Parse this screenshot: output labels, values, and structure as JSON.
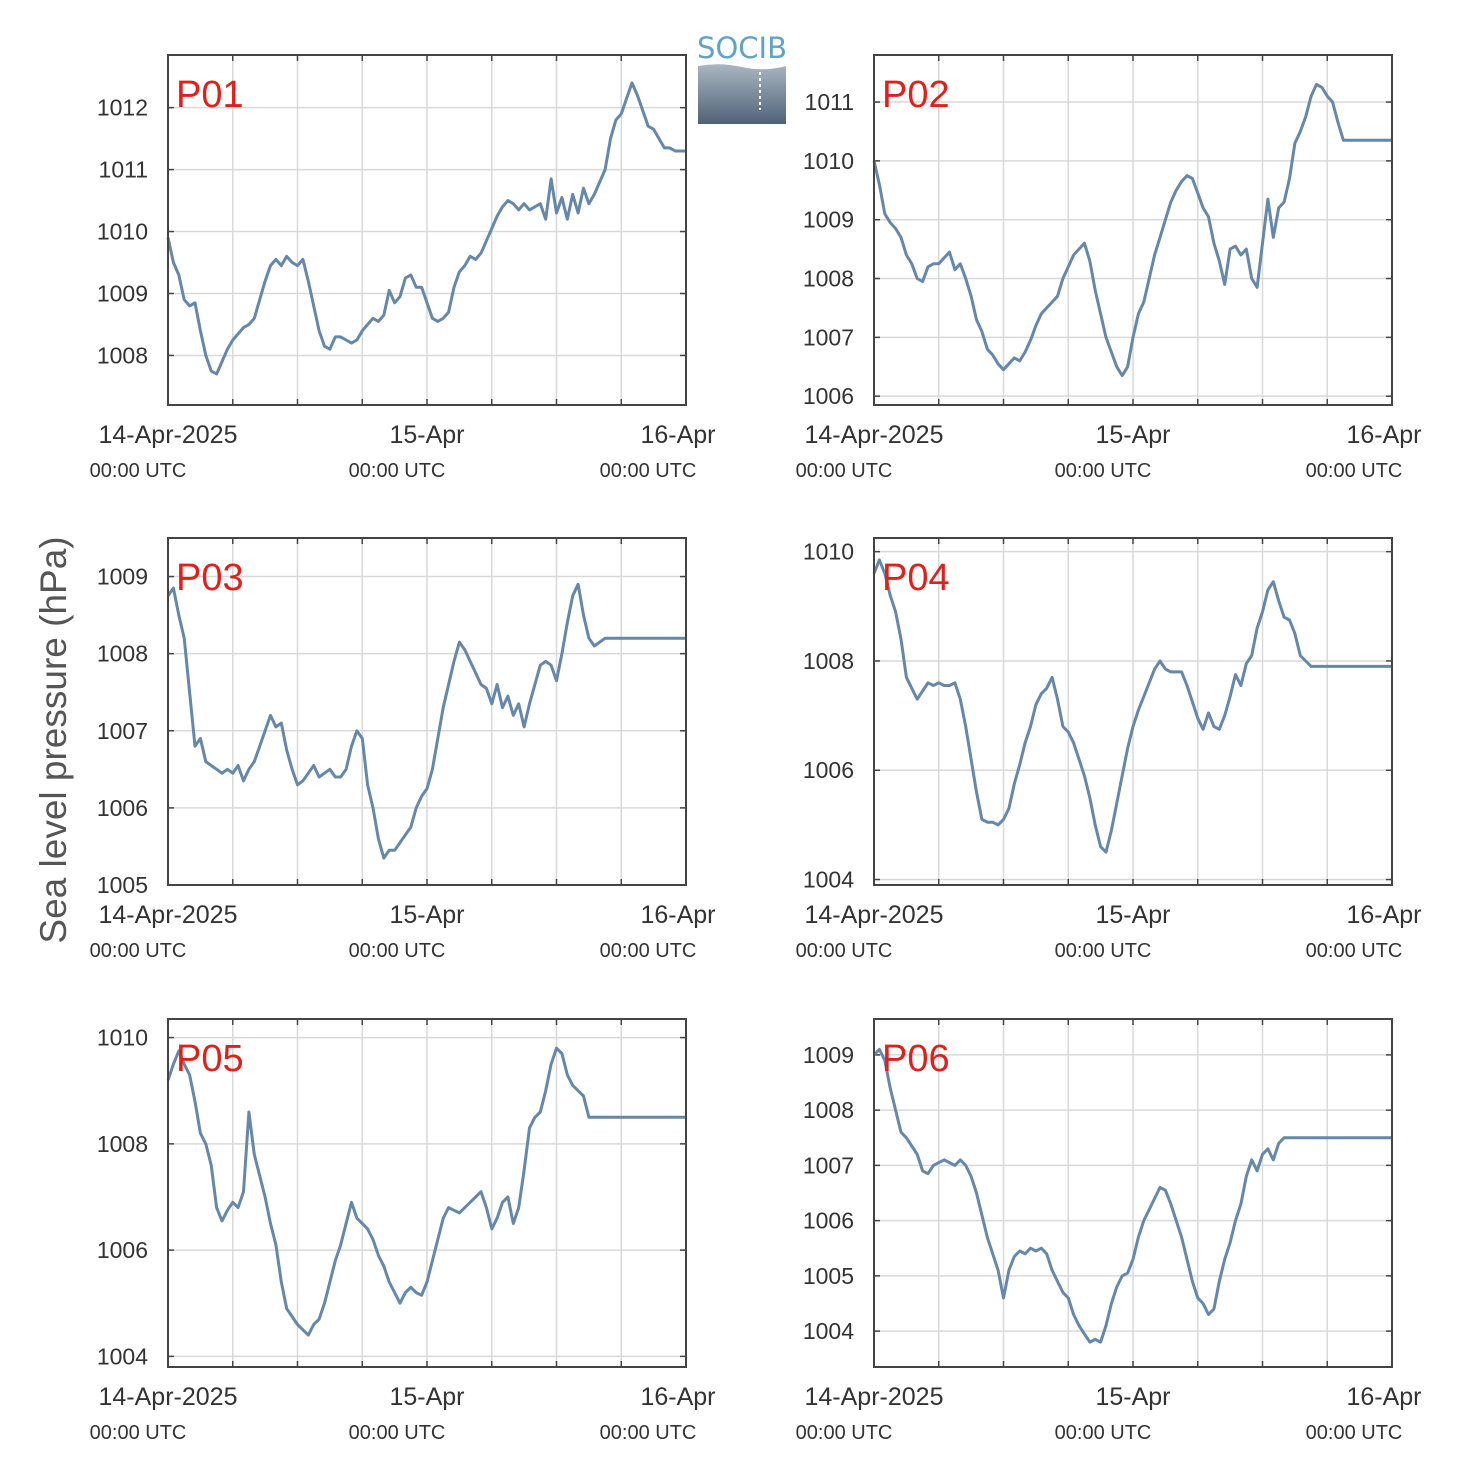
{
  "figure": {
    "ylabel": "Sea level pressure (hPa)",
    "logo_text": "SOCIB",
    "line_color": "#6588aa",
    "label_color": "#e0201b",
    "grid_color": "#d9d9d9",
    "axis_color": "#444444"
  },
  "x_ticks": [
    {
      "day": "14-Apr-2025",
      "time": "00:00 UTC",
      "hour": 0
    },
    {
      "day": "15-Apr",
      "time": "00:00 UTC",
      "hour": 24
    },
    {
      "day": "16-Apr",
      "time": "00:00 UTC",
      "hour": 48
    }
  ],
  "chart_data": [
    {
      "type": "line",
      "name": "P01",
      "xlim": [
        0,
        48
      ],
      "ylim": [
        1007.2,
        1012.85
      ],
      "yticks": [
        1008,
        1009,
        1010,
        1011,
        1012
      ],
      "xgrid_hours": [
        6,
        12,
        18,
        24,
        30,
        36,
        42
      ],
      "x": [
        0,
        0.5,
        1,
        1.5,
        2,
        2.5,
        3,
        3.5,
        4,
        4.5,
        5,
        5.5,
        6,
        6.5,
        7,
        7.5,
        8,
        8.5,
        9,
        9.5,
        10,
        10.5,
        11,
        11.5,
        12,
        12.5,
        13,
        13.5,
        14,
        14.5,
        15,
        15.5,
        16,
        16.5,
        17,
        17.5,
        18,
        18.5,
        19,
        19.5,
        20,
        20.5,
        21,
        21.5,
        22,
        22.5,
        23,
        23.5,
        24,
        24.5,
        25,
        25.5,
        26,
        26.5,
        27,
        27.5,
        28,
        28.5,
        29,
        29.5,
        30,
        30.5,
        31,
        31.5,
        32,
        32.5,
        33,
        33.5,
        34,
        34.5,
        35,
        35.5,
        36,
        36.5,
        37,
        37.5,
        38,
        38.5,
        39,
        39.5,
        40,
        40.5,
        41,
        41.5,
        42,
        42.5,
        43,
        43.5,
        44,
        44.5,
        45,
        45.5,
        46,
        46.5,
        47,
        47.5,
        48
      ],
      "y": [
        1009.9,
        1009.5,
        1009.3,
        1008.9,
        1008.8,
        1008.85,
        1008.4,
        1008.0,
        1007.75,
        1007.7,
        1007.9,
        1008.1,
        1008.25,
        1008.35,
        1008.45,
        1008.5,
        1008.6,
        1008.9,
        1009.2,
        1009.45,
        1009.55,
        1009.45,
        1009.6,
        1009.5,
        1009.45,
        1009.55,
        1009.2,
        1008.8,
        1008.4,
        1008.15,
        1008.1,
        1008.3,
        1008.3,
        1008.25,
        1008.2,
        1008.25,
        1008.4,
        1008.5,
        1008.6,
        1008.55,
        1008.65,
        1009.05,
        1008.85,
        1008.95,
        1009.25,
        1009.3,
        1009.1,
        1009.1,
        1008.85,
        1008.6,
        1008.55,
        1008.6,
        1008.7,
        1009.1,
        1009.35,
        1009.45,
        1009.6,
        1009.55,
        1009.65,
        1009.85,
        1010.05,
        1010.25,
        1010.4,
        1010.5,
        1010.45,
        1010.35,
        1010.45,
        1010.35,
        1010.4,
        1010.45,
        1010.2,
        1010.85,
        1010.3,
        1010.55,
        1010.2,
        1010.6,
        1010.3,
        1010.7,
        1010.45,
        1010.6,
        1010.8,
        1011.0,
        1011.5,
        1011.8,
        1011.9,
        1012.15,
        1012.4,
        1012.2,
        1011.95,
        1011.7,
        1011.65,
        1011.5,
        1011.35,
        1011.35,
        1011.3,
        1011.3,
        1011.3
      ]
    },
    {
      "type": "line",
      "name": "P02",
      "xlim": [
        0,
        48
      ],
      "ylim": [
        1005.85,
        1011.8
      ],
      "yticks": [
        1006,
        1007,
        1008,
        1009,
        1010,
        1011
      ],
      "xgrid_hours": [
        6,
        12,
        18,
        24,
        30,
        36,
        42
      ],
      "x": [
        0,
        0.5,
        1,
        1.5,
        2,
        2.5,
        3,
        3.5,
        4,
        4.5,
        5,
        5.5,
        6,
        6.5,
        7,
        7.5,
        8,
        8.5,
        9,
        9.5,
        10,
        10.5,
        11,
        11.5,
        12,
        12.5,
        13,
        13.5,
        14,
        14.5,
        15,
        15.5,
        16,
        16.5,
        17,
        17.5,
        18,
        18.5,
        19,
        19.5,
        20,
        20.5,
        21,
        21.5,
        22,
        22.5,
        23,
        23.5,
        24,
        24.5,
        25,
        25.5,
        26,
        26.5,
        27,
        27.5,
        28,
        28.5,
        29,
        29.5,
        30,
        30.5,
        31,
        31.5,
        32,
        32.5,
        33,
        33.5,
        34,
        34.5,
        35,
        35.5,
        36,
        36.5,
        37,
        37.5,
        38,
        38.5,
        39,
        39.5,
        40,
        40.5,
        41,
        41.5,
        42,
        42.5,
        43,
        43.5,
        44,
        44.5,
        45,
        45.5,
        46,
        46.5,
        47,
        47.5,
        48
      ],
      "y": [
        1010.0,
        1009.6,
        1009.1,
        1008.95,
        1008.85,
        1008.7,
        1008.4,
        1008.25,
        1008.0,
        1007.95,
        1008.2,
        1008.25,
        1008.25,
        1008.35,
        1008.45,
        1008.15,
        1008.25,
        1008.0,
        1007.7,
        1007.3,
        1007.1,
        1006.8,
        1006.7,
        1006.55,
        1006.45,
        1006.55,
        1006.65,
        1006.6,
        1006.75,
        1006.95,
        1007.2,
        1007.4,
        1007.5,
        1007.6,
        1007.7,
        1008.0,
        1008.2,
        1008.4,
        1008.5,
        1008.6,
        1008.3,
        1007.8,
        1007.4,
        1007.0,
        1006.75,
        1006.5,
        1006.35,
        1006.5,
        1007.0,
        1007.4,
        1007.6,
        1008.0,
        1008.4,
        1008.7,
        1009.0,
        1009.3,
        1009.5,
        1009.65,
        1009.75,
        1009.7,
        1009.45,
        1009.2,
        1009.05,
        1008.6,
        1008.3,
        1007.9,
        1008.5,
        1008.55,
        1008.4,
        1008.5,
        1008.0,
        1007.85,
        1008.6,
        1009.35,
        1008.7,
        1009.2,
        1009.3,
        1009.7,
        1010.3,
        1010.5,
        1010.75,
        1011.1,
        1011.3,
        1011.25,
        1011.1,
        1011.0,
        1010.65,
        1010.35,
        1010.35,
        1010.35,
        1010.35,
        1010.35,
        1010.35,
        1010.35,
        1010.35,
        1010.35,
        1010.35
      ]
    },
    {
      "type": "line",
      "name": "P03",
      "xlim": [
        0,
        48
      ],
      "ylim": [
        1005.0,
        1009.5
      ],
      "yticks": [
        1005,
        1006,
        1007,
        1008,
        1009
      ],
      "xgrid_hours": [
        6,
        12,
        18,
        24,
        30,
        36,
        42
      ],
      "x": [
        0,
        0.5,
        1,
        1.5,
        2,
        2.5,
        3,
        3.5,
        4,
        4.5,
        5,
        5.5,
        6,
        6.5,
        7,
        7.5,
        8,
        8.5,
        9,
        9.5,
        10,
        10.5,
        11,
        11.5,
        12,
        12.5,
        13,
        13.5,
        14,
        14.5,
        15,
        15.5,
        16,
        16.5,
        17,
        17.5,
        18,
        18.5,
        19,
        19.5,
        20,
        20.5,
        21,
        21.5,
        22,
        22.5,
        23,
        23.5,
        24,
        24.5,
        25,
        25.5,
        26,
        26.5,
        27,
        27.5,
        28,
        28.5,
        29,
        29.5,
        30,
        30.5,
        31,
        31.5,
        32,
        32.5,
        33,
        33.5,
        34,
        34.5,
        35,
        35.5,
        36,
        36.5,
        37,
        37.5,
        38,
        38.5,
        39,
        39.5,
        40,
        40.5,
        41,
        41.5,
        42,
        42.5,
        43,
        43.5,
        44,
        44.5,
        45,
        45.5,
        46,
        46.5,
        47,
        47.5,
        48
      ],
      "y": [
        1008.75,
        1008.85,
        1008.5,
        1008.2,
        1007.5,
        1006.8,
        1006.9,
        1006.6,
        1006.55,
        1006.5,
        1006.45,
        1006.5,
        1006.45,
        1006.55,
        1006.35,
        1006.5,
        1006.6,
        1006.8,
        1007.0,
        1007.2,
        1007.05,
        1007.1,
        1006.75,
        1006.5,
        1006.3,
        1006.35,
        1006.45,
        1006.55,
        1006.4,
        1006.45,
        1006.5,
        1006.4,
        1006.4,
        1006.5,
        1006.8,
        1007.0,
        1006.9,
        1006.3,
        1006.0,
        1005.6,
        1005.35,
        1005.45,
        1005.45,
        1005.55,
        1005.65,
        1005.75,
        1006.0,
        1006.15,
        1006.25,
        1006.5,
        1006.9,
        1007.3,
        1007.6,
        1007.9,
        1008.15,
        1008.05,
        1007.9,
        1007.75,
        1007.6,
        1007.55,
        1007.35,
        1007.6,
        1007.3,
        1007.45,
        1007.2,
        1007.35,
        1007.05,
        1007.35,
        1007.6,
        1007.85,
        1007.9,
        1007.85,
        1007.65,
        1008.0,
        1008.4,
        1008.75,
        1008.9,
        1008.5,
        1008.2,
        1008.1,
        1008.15,
        1008.2,
        1008.2,
        1008.2,
        1008.2,
        1008.2,
        1008.2,
        1008.2,
        1008.2,
        1008.2,
        1008.2,
        1008.2,
        1008.2,
        1008.2,
        1008.2,
        1008.2,
        1008.2
      ]
    },
    {
      "type": "line",
      "name": "P04",
      "xlim": [
        0,
        48
      ],
      "ylim": [
        1003.9,
        1010.25
      ],
      "yticks": [
        1004,
        1006,
        1008,
        1010
      ],
      "xgrid_hours": [
        6,
        12,
        18,
        24,
        30,
        36,
        42
      ],
      "x": [
        0,
        0.5,
        1,
        1.5,
        2,
        2.5,
        3,
        3.5,
        4,
        4.5,
        5,
        5.5,
        6,
        6.5,
        7,
        7.5,
        8,
        8.5,
        9,
        9.5,
        10,
        10.5,
        11,
        11.5,
        12,
        12.5,
        13,
        13.5,
        14,
        14.5,
        15,
        15.5,
        16,
        16.5,
        17,
        17.5,
        18,
        18.5,
        19,
        19.5,
        20,
        20.5,
        21,
        21.5,
        22,
        22.5,
        23,
        23.5,
        24,
        24.5,
        25,
        25.5,
        26,
        26.5,
        27,
        27.5,
        28,
        28.5,
        29,
        29.5,
        30,
        30.5,
        31,
        31.5,
        32,
        32.5,
        33,
        33.5,
        34,
        34.5,
        35,
        35.5,
        36,
        36.5,
        37,
        37.5,
        38,
        38.5,
        39,
        39.5,
        40,
        40.5,
        41,
        41.5,
        42,
        42.5,
        43,
        43.5,
        44,
        44.5,
        45,
        45.5,
        46,
        46.5,
        47,
        47.5,
        48
      ],
      "y": [
        1009.6,
        1009.85,
        1009.6,
        1009.2,
        1008.9,
        1008.4,
        1007.7,
        1007.5,
        1007.3,
        1007.45,
        1007.6,
        1007.55,
        1007.6,
        1007.55,
        1007.55,
        1007.6,
        1007.3,
        1006.8,
        1006.2,
        1005.6,
        1005.1,
        1005.05,
        1005.05,
        1005.0,
        1005.1,
        1005.3,
        1005.75,
        1006.1,
        1006.5,
        1006.8,
        1007.2,
        1007.4,
        1007.5,
        1007.7,
        1007.3,
        1006.8,
        1006.7,
        1006.5,
        1006.2,
        1005.9,
        1005.5,
        1005.0,
        1004.6,
        1004.5,
        1004.9,
        1005.4,
        1005.9,
        1006.4,
        1006.8,
        1007.1,
        1007.35,
        1007.6,
        1007.85,
        1008.0,
        1007.85,
        1007.8,
        1007.8,
        1007.8,
        1007.55,
        1007.25,
        1006.95,
        1006.75,
        1007.05,
        1006.8,
        1006.75,
        1007.0,
        1007.35,
        1007.75,
        1007.55,
        1007.95,
        1008.1,
        1008.6,
        1008.9,
        1009.3,
        1009.45,
        1009.1,
        1008.8,
        1008.75,
        1008.5,
        1008.1,
        1008.0,
        1007.9,
        1007.9,
        1007.9,
        1007.9,
        1007.9,
        1007.9,
        1007.9,
        1007.9,
        1007.9,
        1007.9,
        1007.9,
        1007.9,
        1007.9,
        1007.9,
        1007.9,
        1007.9
      ]
    },
    {
      "type": "line",
      "name": "P05",
      "xlim": [
        0,
        48
      ],
      "ylim": [
        1003.8,
        1010.35
      ],
      "yticks": [
        1004,
        1006,
        1008,
        1010
      ],
      "xgrid_hours": [
        6,
        12,
        18,
        24,
        30,
        36,
        42
      ],
      "x": [
        0,
        0.5,
        1,
        1.5,
        2,
        2.5,
        3,
        3.5,
        4,
        4.5,
        5,
        5.5,
        6,
        6.5,
        7,
        7.5,
        8,
        8.5,
        9,
        9.5,
        10,
        10.5,
        11,
        11.5,
        12,
        12.5,
        13,
        13.5,
        14,
        14.5,
        15,
        15.5,
        16,
        16.5,
        17,
        17.5,
        18,
        18.5,
        19,
        19.5,
        20,
        20.5,
        21,
        21.5,
        22,
        22.5,
        23,
        23.5,
        24,
        24.5,
        25,
        25.5,
        26,
        26.5,
        27,
        27.5,
        28,
        28.5,
        29,
        29.5,
        30,
        30.5,
        31,
        31.5,
        32,
        32.5,
        33,
        33.5,
        34,
        34.5,
        35,
        35.5,
        36,
        36.5,
        37,
        37.5,
        38,
        38.5,
        39,
        39.5,
        40,
        40.5,
        41,
        41.5,
        42,
        42.5,
        43,
        43.5,
        44,
        44.5,
        45,
        45.5,
        46,
        46.5,
        47,
        47.5,
        48
      ],
      "y": [
        1009.2,
        1009.5,
        1009.75,
        1009.5,
        1009.3,
        1008.8,
        1008.2,
        1008.0,
        1007.6,
        1006.8,
        1006.55,
        1006.75,
        1006.9,
        1006.8,
        1007.1,
        1008.6,
        1007.8,
        1007.4,
        1007.0,
        1006.5,
        1006.1,
        1005.4,
        1004.9,
        1004.75,
        1004.6,
        1004.5,
        1004.4,
        1004.6,
        1004.7,
        1005.0,
        1005.4,
        1005.8,
        1006.1,
        1006.5,
        1006.9,
        1006.6,
        1006.5,
        1006.4,
        1006.2,
        1005.9,
        1005.7,
        1005.4,
        1005.2,
        1005.0,
        1005.2,
        1005.3,
        1005.2,
        1005.15,
        1005.4,
        1005.8,
        1006.2,
        1006.6,
        1006.8,
        1006.75,
        1006.7,
        1006.8,
        1006.9,
        1007.0,
        1007.1,
        1006.8,
        1006.4,
        1006.6,
        1006.9,
        1007.0,
        1006.5,
        1006.8,
        1007.5,
        1008.3,
        1008.5,
        1008.6,
        1009.0,
        1009.5,
        1009.8,
        1009.7,
        1009.3,
        1009.1,
        1009.0,
        1008.9,
        1008.5,
        1008.5,
        1008.5,
        1008.5,
        1008.5,
        1008.5,
        1008.5,
        1008.5,
        1008.5,
        1008.5,
        1008.5,
        1008.5,
        1008.5,
        1008.5,
        1008.5,
        1008.5,
        1008.5,
        1008.5,
        1008.5
      ]
    },
    {
      "type": "line",
      "name": "P06",
      "xlim": [
        0,
        48
      ],
      "ylim": [
        1003.35,
        1009.65
      ],
      "yticks": [
        1004,
        1005,
        1006,
        1007,
        1008,
        1009
      ],
      "xgrid_hours": [
        6,
        12,
        18,
        24,
        30,
        36,
        42
      ],
      "x": [
        0,
        0.5,
        1,
        1.5,
        2,
        2.5,
        3,
        3.5,
        4,
        4.5,
        5,
        5.5,
        6,
        6.5,
        7,
        7.5,
        8,
        8.5,
        9,
        9.5,
        10,
        10.5,
        11,
        11.5,
        12,
        12.5,
        13,
        13.5,
        14,
        14.5,
        15,
        15.5,
        16,
        16.5,
        17,
        17.5,
        18,
        18.5,
        19,
        19.5,
        20,
        20.5,
        21,
        21.5,
        22,
        22.5,
        23,
        23.5,
        24,
        24.5,
        25,
        25.5,
        26,
        26.5,
        27,
        27.5,
        28,
        28.5,
        29,
        29.5,
        30,
        30.5,
        31,
        31.5,
        32,
        32.5,
        33,
        33.5,
        34,
        34.5,
        35,
        35.5,
        36,
        36.5,
        37,
        37.5,
        38,
        38.5,
        39,
        39.5,
        40,
        40.5,
        41,
        41.5,
        42,
        42.5,
        43,
        43.5,
        44,
        44.5,
        45,
        45.5,
        46,
        46.5,
        47,
        47.5,
        48
      ],
      "y": [
        1009.0,
        1009.1,
        1008.9,
        1008.4,
        1008.0,
        1007.6,
        1007.5,
        1007.35,
        1007.2,
        1006.9,
        1006.85,
        1007.0,
        1007.05,
        1007.1,
        1007.05,
        1007.0,
        1007.1,
        1007.0,
        1006.8,
        1006.5,
        1006.1,
        1005.7,
        1005.4,
        1005.1,
        1004.6,
        1005.1,
        1005.35,
        1005.45,
        1005.4,
        1005.5,
        1005.45,
        1005.5,
        1005.4,
        1005.1,
        1004.9,
        1004.7,
        1004.6,
        1004.3,
        1004.1,
        1003.95,
        1003.8,
        1003.85,
        1003.8,
        1004.1,
        1004.5,
        1004.8,
        1005.0,
        1005.05,
        1005.3,
        1005.7,
        1006.0,
        1006.2,
        1006.4,
        1006.6,
        1006.55,
        1006.3,
        1006.0,
        1005.7,
        1005.3,
        1004.9,
        1004.6,
        1004.5,
        1004.3,
        1004.4,
        1004.9,
        1005.3,
        1005.6,
        1006.0,
        1006.3,
        1006.8,
        1007.1,
        1006.9,
        1007.2,
        1007.3,
        1007.1,
        1007.4,
        1007.5,
        1007.5,
        1007.5,
        1007.5,
        1007.5,
        1007.5,
        1007.5,
        1007.5,
        1007.5,
        1007.5,
        1007.5,
        1007.5,
        1007.5,
        1007.5,
        1007.5,
        1007.5,
        1007.5,
        1007.5,
        1007.5,
        1007.5,
        1007.5
      ]
    }
  ]
}
